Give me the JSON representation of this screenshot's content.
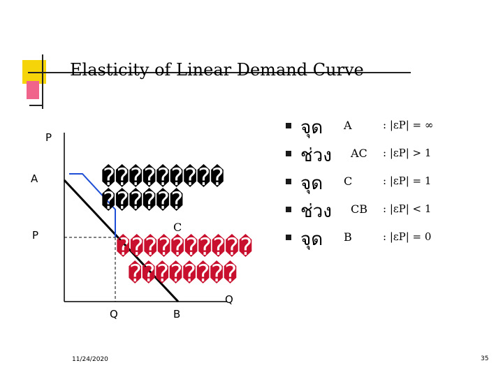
{
  "title": "Elasticity of Linear Demand Curve",
  "axis": {
    "p_top": "P",
    "p_mid": "P",
    "a_label": "A",
    "c_label": "C",
    "q_x": "Q",
    "b_label": "B",
    "q_axis": "Q"
  },
  "garbled": {
    "line1": "���������",
    "line2": "������",
    "line3": "����������",
    "line4": "��������"
  },
  "bullets": [
    {
      "point": "จุด",
      "segment": "A",
      "elasticity": ": |εP| = ∞"
    },
    {
      "point": "ช่วง",
      "segment": "AC",
      "elasticity": ": |εP| > 1"
    },
    {
      "point": "จุด",
      "segment": "C",
      "elasticity": ": |εP| = 1"
    },
    {
      "point": "ช่วง",
      "segment": "CB",
      "elasticity": ": |εP| < 1"
    },
    {
      "point": "จุด",
      "segment": "B",
      "elasticity": ": |εP| = 0"
    }
  ],
  "footer": {
    "date": "11/24/2020",
    "page": "35"
  },
  "colors": {
    "logo_yellow": "#f5d40a",
    "logo_pink": "#f0648c",
    "garbled_red": "#c8102e"
  }
}
